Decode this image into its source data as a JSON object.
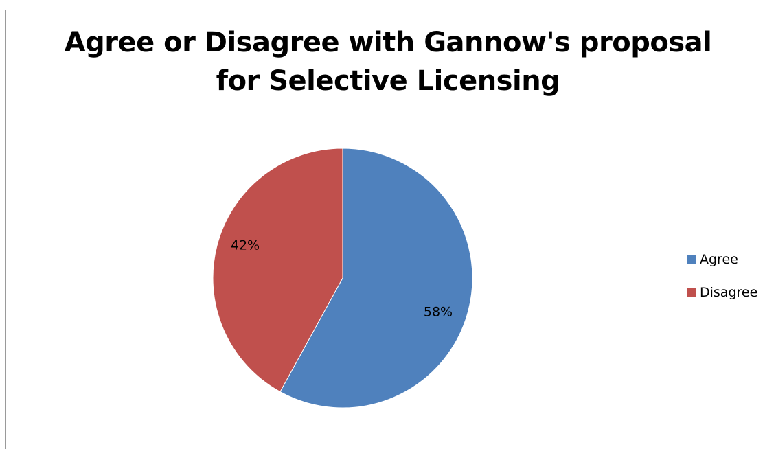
{
  "chart_data": {
    "type": "pie",
    "title": [
      "Agree or Disagree with Gannow's proposal",
      "for Selective Licensing"
    ],
    "slices": [
      {
        "label": "Agree",
        "value": 58,
        "display": "58%",
        "color": "#4f81bd"
      },
      {
        "label": "Disagree",
        "value": 42,
        "display": "42%",
        "color": "#c0504d"
      }
    ],
    "legend_position": "right"
  }
}
